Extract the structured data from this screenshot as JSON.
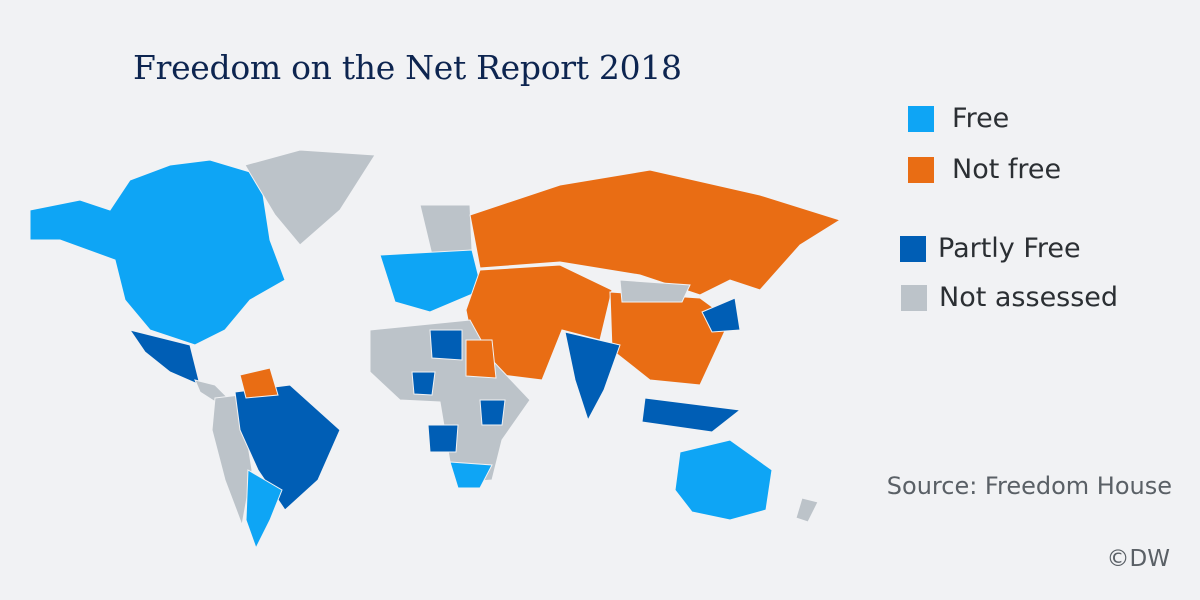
{
  "title": "Freedom on the Net Report 2018",
  "legend": [
    {
      "label": "Free",
      "color": "#0ea5f5"
    },
    {
      "label": "Not free",
      "color": "#e96d14"
    },
    {
      "label": "Partly Free",
      "color": "#005eb5"
    },
    {
      "label": "Not assessed",
      "color": "#bcc3c9"
    }
  ],
  "source": "Source:  Freedom House",
  "credit": "©DW"
}
